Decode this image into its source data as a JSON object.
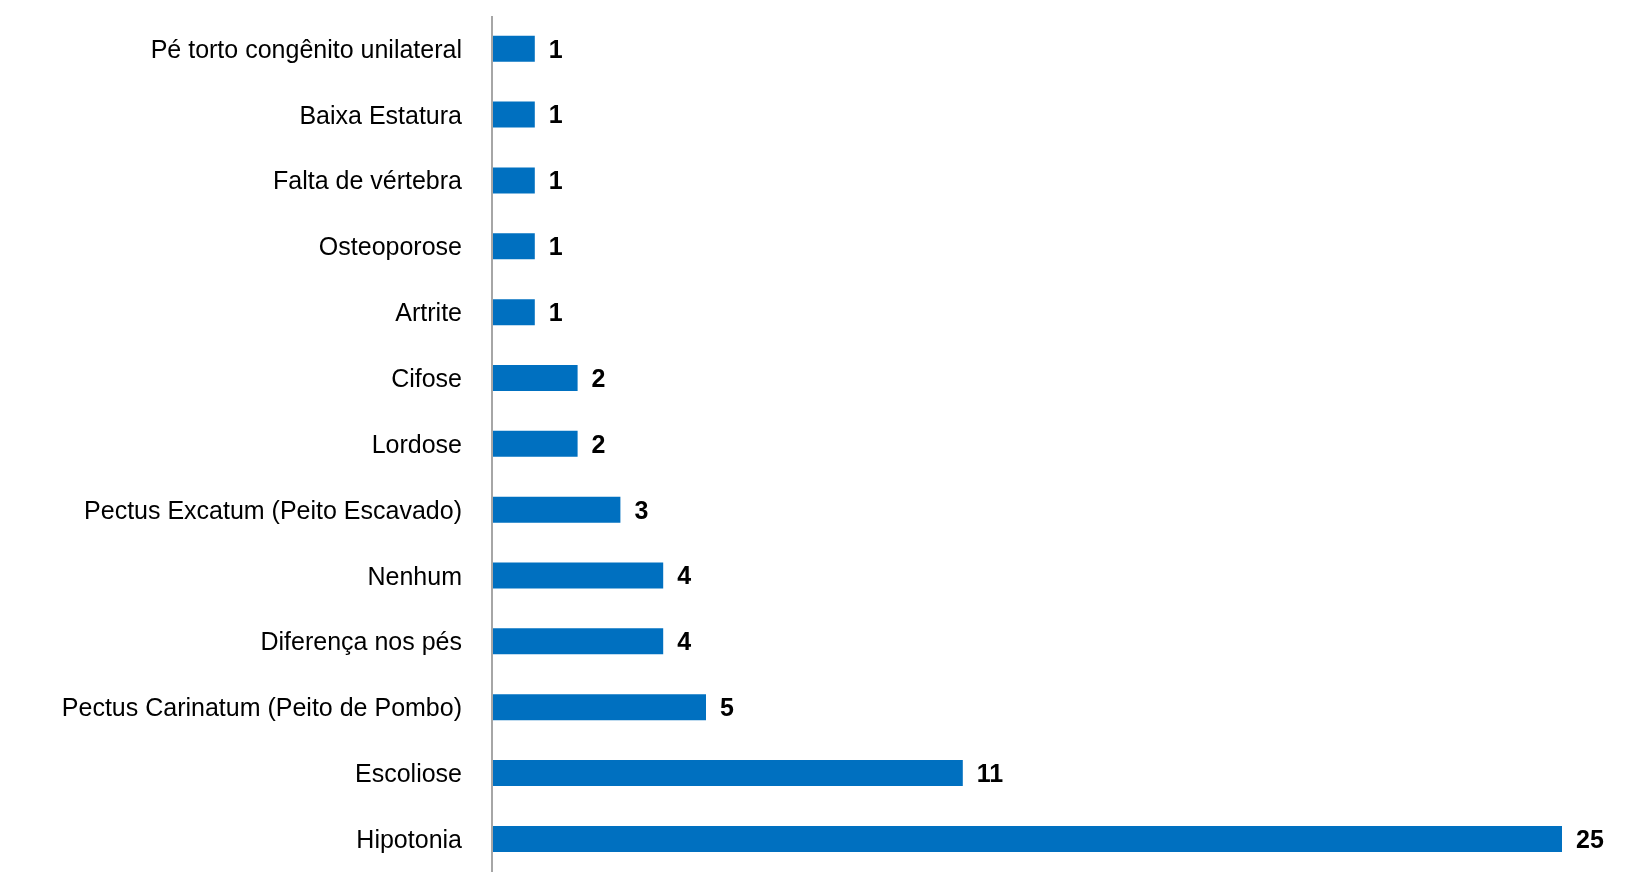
{
  "chart_data": {
    "type": "bar",
    "orientation": "horizontal",
    "categories": [
      "Pé torto congênito unilateral",
      "Baixa Estatura",
      "Falta de vértebra",
      "Osteoporose",
      "Artrite",
      "Cifose",
      "Lordose",
      "Pectus Excatum (Peito Escavado)",
      "Nenhum",
      "Diferença nos pés",
      "Pectus Carinatum (Peito de Pombo)",
      "Escoliose",
      "Hipotonia"
    ],
    "values": [
      1,
      1,
      1,
      1,
      1,
      2,
      2,
      3,
      4,
      4,
      5,
      11,
      25
    ],
    "color": "#0070c0",
    "data_labels": true,
    "grid": false
  }
}
